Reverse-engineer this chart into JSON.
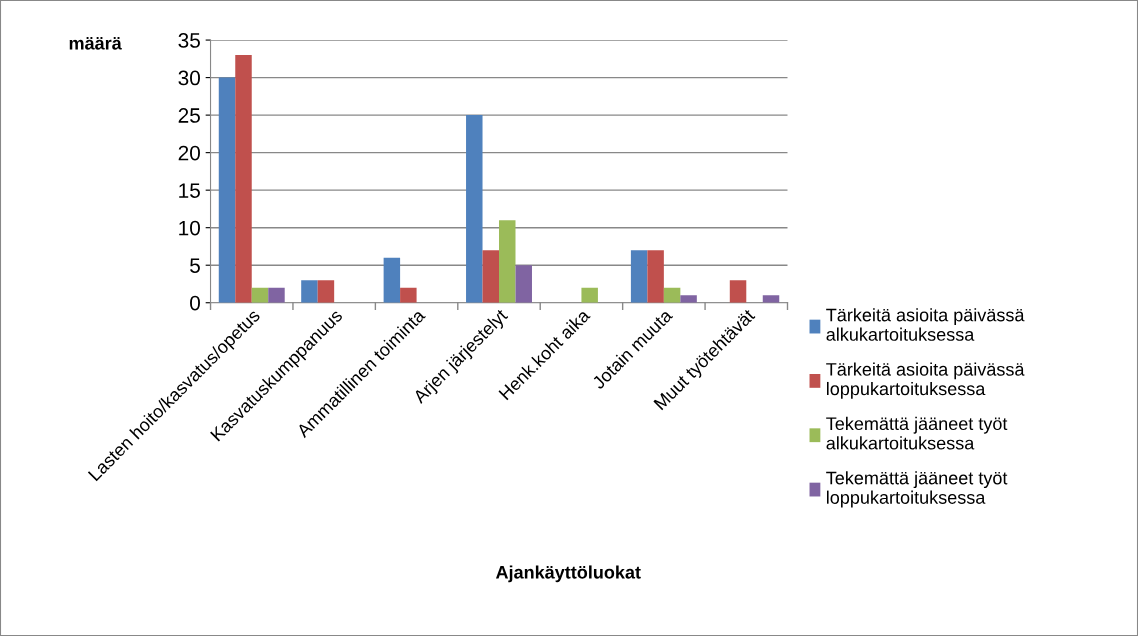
{
  "chart_data": {
    "type": "bar",
    "xlabel": "Ajankäyttöluokat",
    "ylabel": "määrä",
    "categories": [
      "Lasten hoito/kasvatus/opetus",
      "Kasvatuskumppanuus",
      "Ammatillinen toiminta",
      "Arjen järjestelyt",
      "Henk.koht aika",
      "Jotain muuta",
      "Muut työtehtävät"
    ],
    "series": [
      {
        "name": "Tärkeitä asioita päivässä\nalkukartoituksessa",
        "color": "#4f81bd",
        "values": [
          30,
          3,
          6,
          25,
          0,
          7,
          0
        ]
      },
      {
        "name": "Tärkeitä asioita päivässä\nloppukartoituksessa",
        "color": "#c0504d",
        "values": [
          33,
          3,
          2,
          7,
          0,
          7,
          3
        ]
      },
      {
        "name": "Tekemättä jääneet työt\nalkukartoituksessa",
        "color": "#9bbb59",
        "values": [
          2,
          0,
          0,
          11,
          2,
          2,
          0
        ]
      },
      {
        "name": "Tekemättä jääneet työt\nloppukartoituksessa",
        "color": "#8064a2",
        "values": [
          2,
          0,
          0,
          5,
          0,
          1,
          1
        ]
      }
    ],
    "ylim": [
      0,
      35
    ],
    "yticks": [
      0,
      5,
      10,
      15,
      20,
      25,
      30,
      35
    ],
    "grid": "y",
    "legend": "right"
  }
}
